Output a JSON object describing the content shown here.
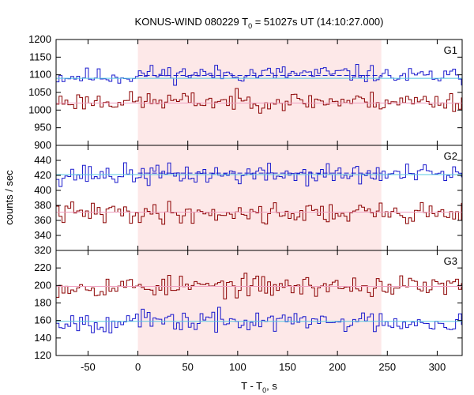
{
  "chart_data": {
    "type": "line",
    "title": {
      "prefix": "KONUS-WIND 080229 T",
      "sub": "0",
      "suffix": " = 51027s UT (14:10:27.000)"
    },
    "xlabel": {
      "prefix": "T - T",
      "sub": "0",
      "suffix": ", s"
    },
    "ylabel": "counts / sec",
    "xlim": [
      -82,
      325
    ],
    "xticks": [
      -50,
      0,
      50,
      100,
      150,
      200,
      250,
      300
    ],
    "grid": false,
    "shaded_interval": {
      "x": [
        0,
        244
      ],
      "color": "#fde8e8"
    },
    "colors": {
      "red": "#8b0000",
      "blue": "#1a1acd",
      "cyan_fit": "#58c8e0",
      "pink_fit": "#f0a0c0"
    },
    "panels": [
      {
        "name": "G1",
        "ylim": [
          900,
          1200
        ],
        "yticks": [
          900,
          950,
          1000,
          1050,
          1100,
          1150,
          1200
        ],
        "series": [
          {
            "color": "#1a1acd",
            "mean": 1095,
            "spread": 12,
            "seed": 11,
            "fit_color": "#58c8e0",
            "fit_level": 1090,
            "dash_level": 1098,
            "bump": {
              "x": [
                0,
                244
              ],
              "dy": 8
            }
          },
          {
            "color": "#8b0000",
            "mean": 1025,
            "spread": 13,
            "seed": 23,
            "fit_color": "#f0a0c0",
            "fit_level": 1020
          }
        ]
      },
      {
        "name": "G2",
        "ylim": [
          320,
          460
        ],
        "yticks": [
          320,
          340,
          360,
          380,
          400,
          420,
          440
        ],
        "series": [
          {
            "color": "#1a1acd",
            "mean": 421,
            "spread": 7,
            "seed": 37,
            "fit_color": "#58c8e0",
            "fit_level": 421,
            "dash_level": 423
          },
          {
            "color": "#8b0000",
            "mean": 370,
            "spread": 7,
            "seed": 41,
            "fit_color": "#f0a0c0",
            "fit_level": 371
          }
        ]
      },
      {
        "name": "G3",
        "ylim": [
          120,
          240
        ],
        "yticks": [
          120,
          140,
          160,
          180,
          200,
          220
        ],
        "series": [
          {
            "color": "#8b0000",
            "mean": 199,
            "spread": 6,
            "seed": 53,
            "fit_color": "#f0a0c0",
            "fit_level": 199
          },
          {
            "color": "#1a1acd",
            "mean": 159,
            "spread": 6,
            "seed": 67,
            "fit_color": "#58c8e0",
            "fit_level": 159
          }
        ]
      }
    ]
  }
}
